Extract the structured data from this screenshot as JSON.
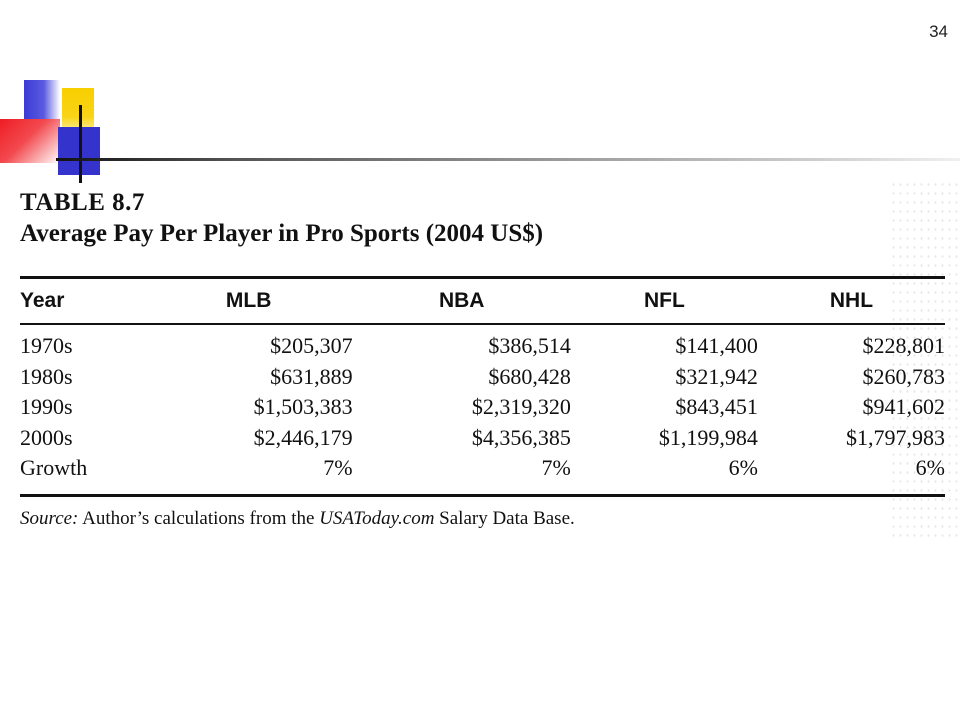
{
  "page_number": "34",
  "table": {
    "label": "TABLE 8.7",
    "title": "Average Pay Per Player in Pro Sports (2004 US$)",
    "columns": [
      "Year",
      "MLB",
      "NBA",
      "NFL",
      "NHL"
    ],
    "rows": [
      [
        "1970s",
        "$205,307",
        "$386,514",
        "$141,400",
        "$228,801"
      ],
      [
        "1980s",
        "$631,889",
        "$680,428",
        "$321,942",
        "$260,783"
      ],
      [
        "1990s",
        "$1,503,383",
        "$2,319,320",
        "$843,451",
        "$941,602"
      ],
      [
        "2000s",
        "$2,446,179",
        "$4,356,385",
        "$1,199,984",
        "$1,797,983"
      ],
      [
        "Growth",
        "7%",
        "7%",
        "6%",
        "6%"
      ]
    ]
  },
  "source": {
    "label": "Source:",
    "text_before": " Author’s calculations from the ",
    "site": "USAToday.com",
    "text_after": " Salary Data Base."
  },
  "colors": {
    "logo_blue": "#3434cc",
    "logo_yellow": "#f7cf00",
    "logo_red": "#ee1c24"
  }
}
